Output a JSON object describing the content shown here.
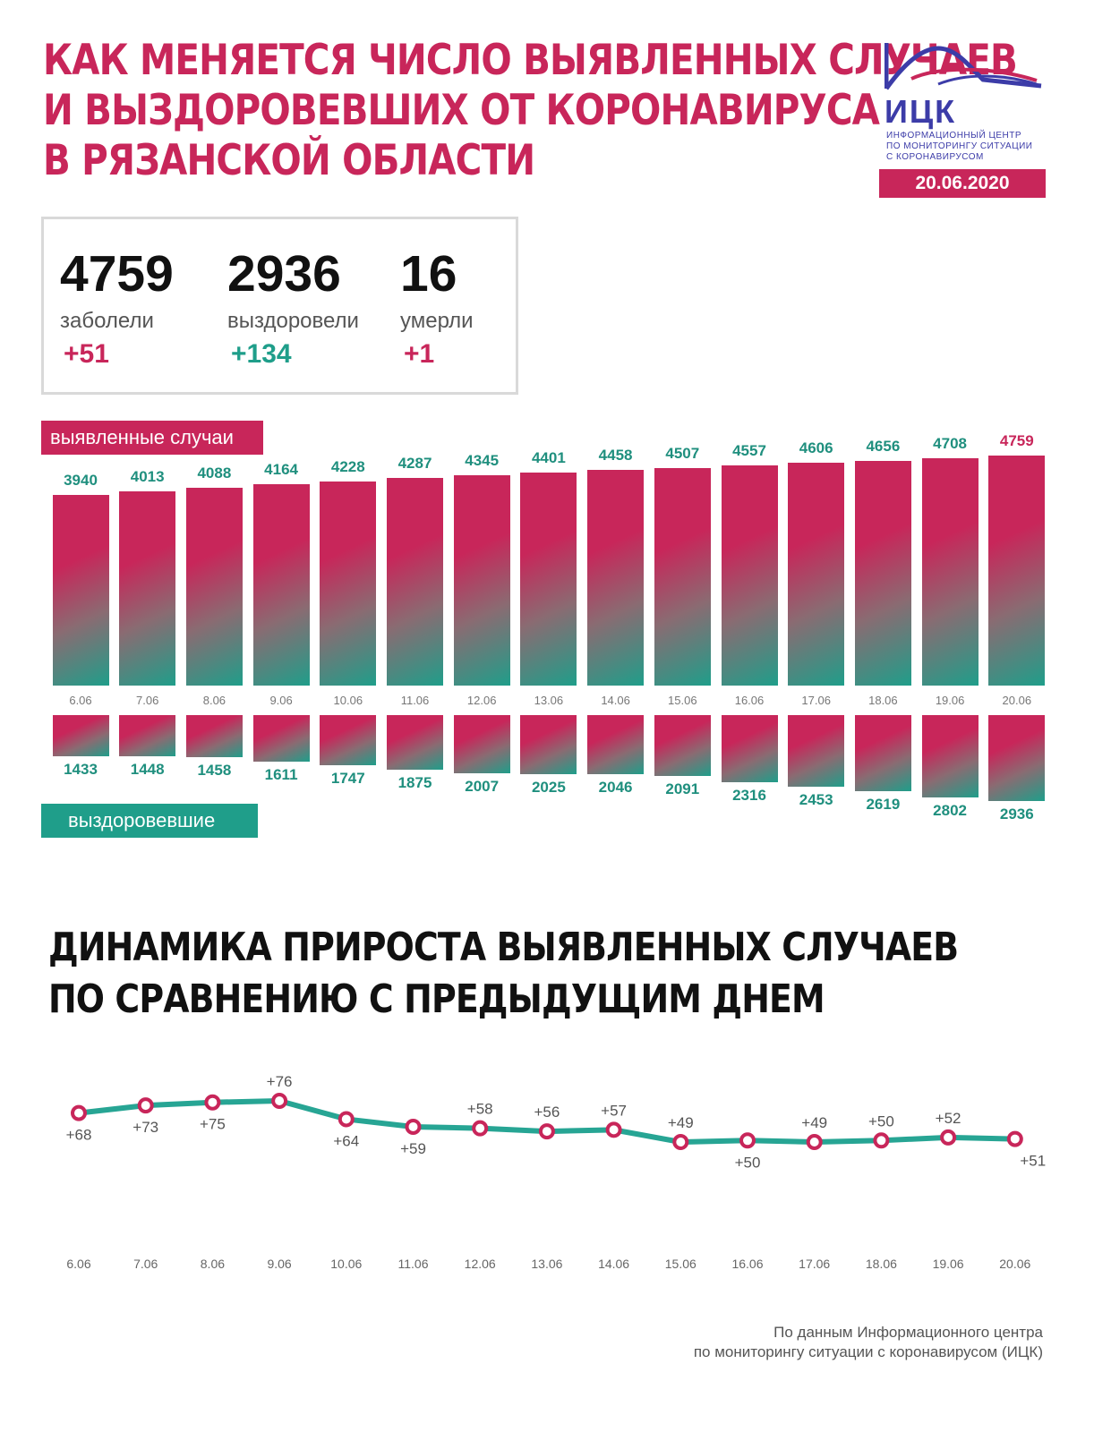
{
  "title": {
    "line1": "КАК МЕНЯЕТСЯ ЧИСЛО ВЫЯВЛЕННЫХ СЛУЧАЕВ",
    "line2": "И ВЫЗДОРОВЕВШИХ ОТ КОРОНАВИРУСА",
    "line3": "В РЯЗАНСКОЙ ОБЛАСТИ"
  },
  "logo": {
    "name": "ИЦК",
    "sub1": "ИНФОРМАЦИОННЫЙ ЦЕНТР",
    "sub2": "ПО МОНИТОРИНГУ СИТУАЦИИ",
    "sub3": "С КОРОНАВИРУСОМ"
  },
  "date": "20.06.2020",
  "stats": {
    "cases": {
      "value": "4759",
      "label": "заболели",
      "delta": "+51"
    },
    "recovered": {
      "value": "2936",
      "label": "выздоровели",
      "delta": "+134"
    },
    "deaths": {
      "value": "16",
      "label": "умерли",
      "delta": "+1"
    }
  },
  "colors": {
    "accent": "#c8265a",
    "teal": "#1f9e8a",
    "line": "#27a594"
  },
  "labels": {
    "cases_badge": "выявленные случаи",
    "recovered_badge": "выздоровевшие"
  },
  "chart_title": {
    "line1": "ДИНАМИКА ПРИРОСТА ВЫЯВЛЕННЫХ СЛУЧАЕВ",
    "line2": "ПО СРАВНЕНИЮ С ПРЕДЫДУЩИМ ДНЕМ"
  },
  "footer": {
    "line1": "По данным Информационного центра",
    "line2": "по мониторингу ситуации с коронавирусом (ИЦК)"
  },
  "chart_data": [
    {
      "type": "bar",
      "categories": [
        "6.06",
        "7.06",
        "8.06",
        "9.06",
        "10.06",
        "11.06",
        "12.06",
        "13.06",
        "14.06",
        "15.06",
        "16.06",
        "17.06",
        "18.06",
        "19.06",
        "20.06"
      ],
      "series": [
        {
          "name": "выявленные случаи",
          "values": [
            3940,
            4013,
            4088,
            4164,
            4228,
            4287,
            4345,
            4401,
            4458,
            4507,
            4557,
            4606,
            4656,
            4708,
            4759
          ]
        },
        {
          "name": "выздоровевшие",
          "values": [
            1433,
            1448,
            1458,
            1611,
            1747,
            1875,
            2007,
            2025,
            2046,
            2091,
            2316,
            2453,
            2619,
            2802,
            2936
          ]
        }
      ]
    },
    {
      "type": "line",
      "title": "ДИНАМИКА ПРИРОСТА ВЫЯВЛЕННЫХ СЛУЧАЕВ ПО СРАВНЕНИЮ С ПРЕДЫДУЩИМ ДНЕМ",
      "categories": [
        "6.06",
        "7.06",
        "8.06",
        "9.06",
        "10.06",
        "11.06",
        "12.06",
        "13.06",
        "14.06",
        "15.06",
        "16.06",
        "17.06",
        "18.06",
        "19.06",
        "20.06"
      ],
      "values": [
        68,
        73,
        75,
        76,
        64,
        59,
        58,
        56,
        57,
        49,
        50,
        49,
        50,
        52,
        51
      ],
      "value_labels": [
        "+68",
        "+73",
        "+75",
        "+76",
        "+64",
        "+59",
        "+58",
        "+56",
        "+57",
        "+49",
        "+50",
        "+49",
        "+50",
        "+52",
        "+51"
      ],
      "label_positions": [
        "below",
        "below",
        "below",
        "above",
        "below",
        "below",
        "above",
        "above",
        "above",
        "above",
        "below",
        "above",
        "above",
        "above",
        "below"
      ]
    }
  ]
}
